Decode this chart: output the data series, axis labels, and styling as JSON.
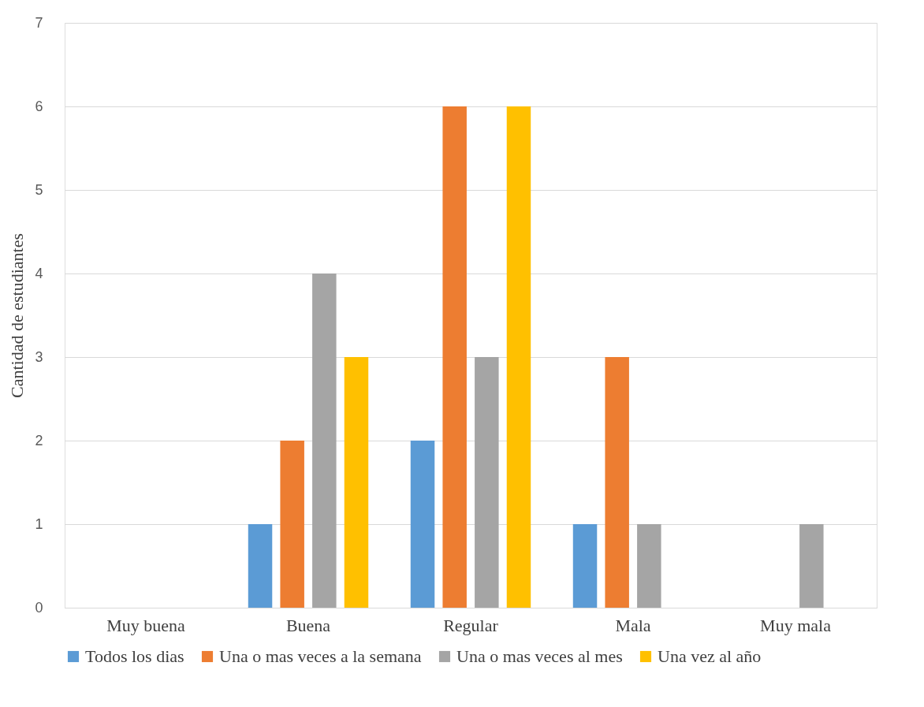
{
  "chart_data": {
    "type": "bar",
    "ylabel": "Cantidad de estudiantes",
    "categories": [
      "Muy buena",
      "Buena",
      "Regular",
      "Mala",
      "Muy mala"
    ],
    "series": [
      {
        "name": "Todos los dias",
        "color": "#5b9bd5",
        "values": [
          0,
          1,
          2,
          1,
          0
        ]
      },
      {
        "name": "Una o mas veces a la semana",
        "color": "#ed7d31",
        "values": [
          0,
          2,
          6,
          3,
          0
        ]
      },
      {
        "name": "Una o mas veces al mes",
        "color": "#a5a5a5",
        "values": [
          0,
          4,
          3,
          1,
          1
        ]
      },
      {
        "name": "Una vez al año",
        "color": "#ffc000",
        "values": [
          0,
          3,
          6,
          0,
          0
        ]
      }
    ],
    "ylim": [
      0,
      7
    ],
    "yticks": [
      0,
      1,
      2,
      3,
      4,
      5,
      6,
      7
    ],
    "grid": "y",
    "legend": "bottom"
  }
}
